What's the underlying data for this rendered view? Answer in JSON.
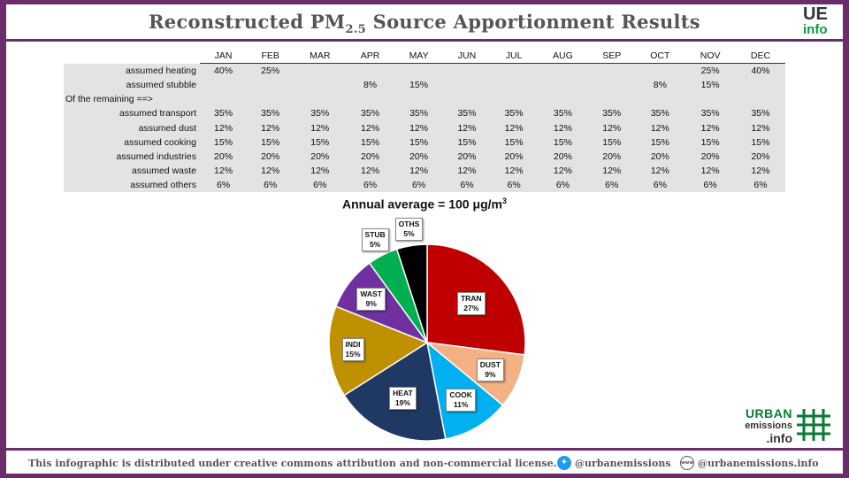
{
  "header": {
    "title_main": "Reconstructed PM",
    "title_sub": "2.5",
    "title_tail": " Source Apportionment Results"
  },
  "logo": {
    "line1": "UE",
    "line2": "info"
  },
  "table": {
    "months": [
      "JAN",
      "FEB",
      "MAR",
      "APR",
      "MAY",
      "JUN",
      "JUL",
      "AUG",
      "SEP",
      "OCT",
      "NOV",
      "DEC"
    ],
    "remaining_label": "Of the remaining ==>",
    "rows_top": [
      {
        "label": "assumed heating",
        "values": [
          "40%",
          "25%",
          "",
          "",
          "",
          "",
          "",
          "",
          "",
          "",
          "25%",
          "40%"
        ]
      },
      {
        "label": "assumed stubble",
        "values": [
          "",
          "",
          "",
          "8%",
          "15%",
          "",
          "",
          "",
          "",
          "8%",
          "15%",
          ""
        ]
      }
    ],
    "rows_bottom": [
      {
        "label": "assumed transport",
        "values": [
          "35%",
          "35%",
          "35%",
          "35%",
          "35%",
          "35%",
          "35%",
          "35%",
          "35%",
          "35%",
          "35%",
          "35%"
        ]
      },
      {
        "label": "assumed dust",
        "values": [
          "12%",
          "12%",
          "12%",
          "12%",
          "12%",
          "12%",
          "12%",
          "12%",
          "12%",
          "12%",
          "12%",
          "12%"
        ]
      },
      {
        "label": "assumed cooking",
        "values": [
          "15%",
          "15%",
          "15%",
          "15%",
          "15%",
          "15%",
          "15%",
          "15%",
          "15%",
          "15%",
          "15%",
          "15%"
        ]
      },
      {
        "label": "assumed industries",
        "values": [
          "20%",
          "20%",
          "20%",
          "20%",
          "20%",
          "20%",
          "20%",
          "20%",
          "20%",
          "20%",
          "20%",
          "20%"
        ]
      },
      {
        "label": "assumed waste",
        "values": [
          "12%",
          "12%",
          "12%",
          "12%",
          "12%",
          "12%",
          "12%",
          "12%",
          "12%",
          "12%",
          "12%",
          "12%"
        ]
      },
      {
        "label": "assumed others",
        "values": [
          "6%",
          "6%",
          "6%",
          "6%",
          "6%",
          "6%",
          "6%",
          "6%",
          "6%",
          "6%",
          "6%",
          "6%"
        ]
      }
    ]
  },
  "annual": {
    "prefix": "Annual average = 100 ",
    "mu": "μ",
    "unit": "g/m",
    "sup": "3"
  },
  "chart_data": {
    "type": "pie",
    "title": "Annual average = 100 μg/m3",
    "slices": [
      {
        "label": "TRAN",
        "value": 27,
        "pct": "27%",
        "color": "#c00000"
      },
      {
        "label": "DUST",
        "value": 9,
        "pct": "9%",
        "color": "#f4b183"
      },
      {
        "label": "COOK",
        "value": 11,
        "pct": "11%",
        "color": "#00b0f0"
      },
      {
        "label": "HEAT",
        "value": 19,
        "pct": "19%",
        "color": "#1f3864"
      },
      {
        "label": "INDI",
        "value": 15,
        "pct": "15%",
        "color": "#bf9000"
      },
      {
        "label": "WAST",
        "value": 9,
        "pct": "9%",
        "color": "#7030a0"
      },
      {
        "label": "STUB",
        "value": 5,
        "pct": "5%",
        "color": "#00b050"
      },
      {
        "label": "OTHS",
        "value": 5,
        "pct": "5%",
        "color": "#000000"
      }
    ]
  },
  "brand": {
    "line1": "URBAN",
    "line2": "emissions",
    "line3": ".info"
  },
  "footer": {
    "license": "This infographic is distributed under creative commons attribution and non-commercial license.",
    "twitter_icon": "twitter-icon",
    "twitter": "@urbanemissions",
    "web_icon": "www-icon",
    "web": "@urbanemissions.info"
  }
}
